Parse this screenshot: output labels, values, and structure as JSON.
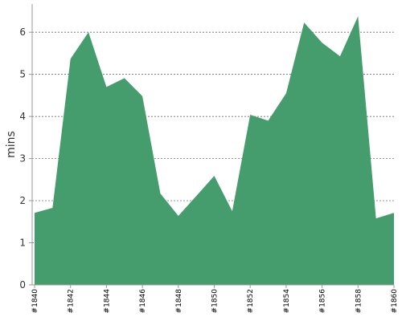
{
  "chart_data": {
    "type": "area",
    "y_label": "mins",
    "categories": [
      "#1840",
      null,
      "#1842",
      null,
      "#1844",
      null,
      "#1846",
      null,
      "#1848",
      null,
      "#1850",
      null,
      "#1852",
      null,
      "#1854",
      null,
      "#1856",
      null,
      "#1858",
      null,
      "#1860"
    ],
    "values": [
      1.71,
      1.83,
      5.37,
      6.0,
      4.7,
      4.91,
      4.48,
      2.17,
      1.64,
      2.11,
      2.59,
      1.75,
      4.04,
      3.9,
      4.55,
      6.23,
      5.75,
      5.43,
      6.38,
      1.58,
      1.71
    ],
    "color": "#459c6c",
    "ylim": [
      0,
      6.67
    ],
    "yticks": [
      0,
      1,
      2,
      3,
      4,
      5,
      6
    ],
    "grid": true
  }
}
